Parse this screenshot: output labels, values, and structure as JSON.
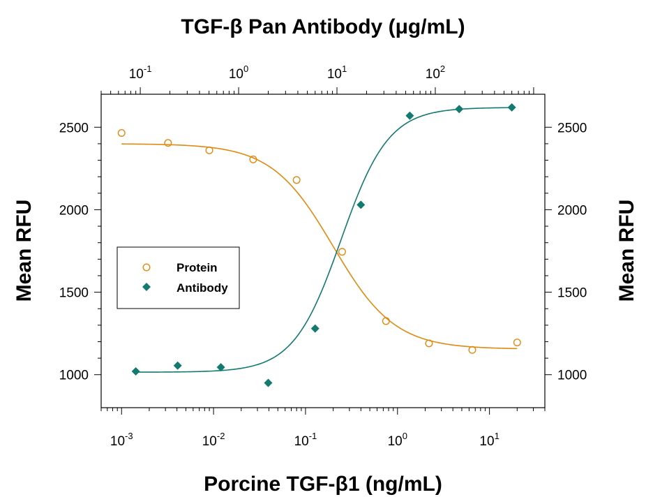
{
  "chart_data": {
    "type": "scatter",
    "title": "",
    "xlabel": "Porcine TGF-β1 (ng/mL)",
    "x2label": "TGF-β Pan Antibody (μg/mL)",
    "ylabel": "Mean RFU",
    "y2label": "Mean RFU",
    "xscale": "log",
    "x2scale": "log",
    "xlim": [
      0.0006,
      40
    ],
    "x2lim": [
      0.04,
      1300
    ],
    "ylim": [
      800,
      2700
    ],
    "grid": false,
    "legend_position": "left-middle",
    "x_ticks": [
      {
        "value": 0.001,
        "base": "10",
        "exp": "-3"
      },
      {
        "value": 0.01,
        "base": "10",
        "exp": "-2"
      },
      {
        "value": 0.1,
        "base": "10",
        "exp": "-1"
      },
      {
        "value": 1,
        "base": "10",
        "exp": "0"
      },
      {
        "value": 10,
        "base": "10",
        "exp": "1"
      }
    ],
    "x2_ticks": [
      {
        "value": 0.1,
        "base": "10",
        "exp": "-1"
      },
      {
        "value": 1,
        "base": "10",
        "exp": "0"
      },
      {
        "value": 10,
        "base": "10",
        "exp": "1"
      },
      {
        "value": 100,
        "base": "10",
        "exp": "2"
      }
    ],
    "y_ticks": [
      "1000",
      "1500",
      "2000",
      "2500"
    ],
    "series": [
      {
        "name": "Protein",
        "axis": "bottom",
        "marker": "open-circle",
        "color": "#E08A12",
        "x": [
          0.001,
          0.0032,
          0.009,
          0.027,
          0.08,
          0.25,
          0.75,
          2.2,
          6.5,
          20
        ],
        "y": [
          2465,
          2405,
          2360,
          2305,
          2180,
          1745,
          1325,
          1190,
          1150,
          1195
        ],
        "fit": {
          "top": 2400,
          "bottom": 1155,
          "ec50": 0.2,
          "hill": 1.3
        }
      },
      {
        "name": "Antibody",
        "axis": "top",
        "marker": "filled-diamond",
        "color": "#127A6E",
        "x": [
          0.09,
          0.24,
          0.66,
          2.0,
          6.0,
          17.5,
          55,
          175,
          600
        ],
        "y": [
          1020,
          1055,
          1045,
          950,
          1280,
          2030,
          2570,
          2610,
          2620
        ],
        "fit": {
          "top": 2620,
          "bottom": 1015,
          "ec50": 11,
          "hill": 1.8
        }
      }
    ]
  }
}
